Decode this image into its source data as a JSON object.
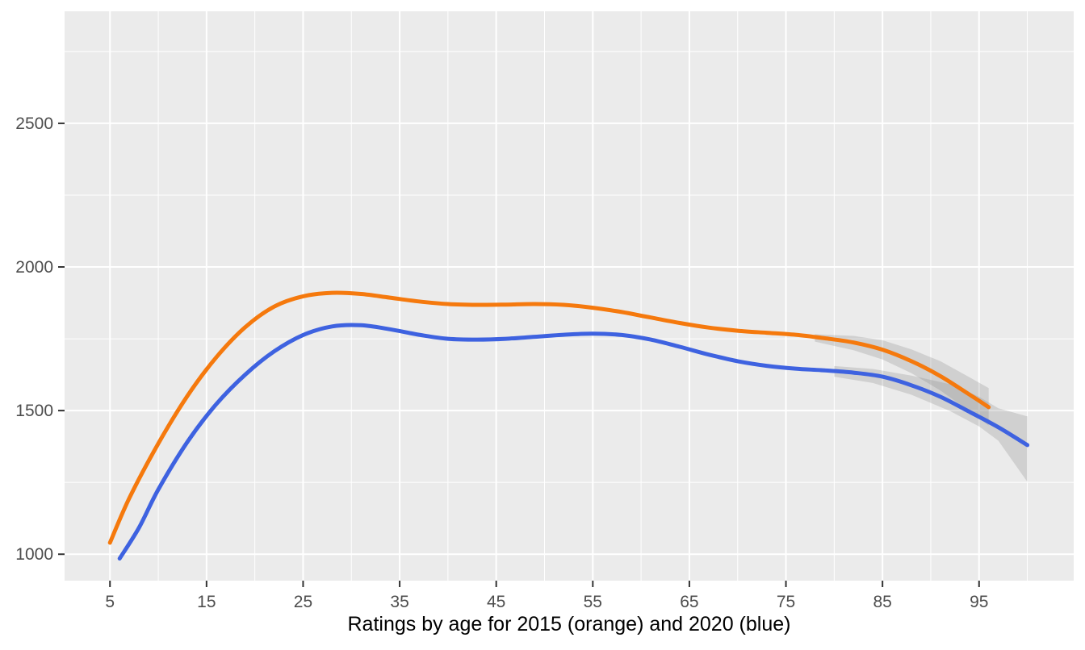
{
  "page": {
    "background": "#FFFFFF"
  },
  "chart_data": {
    "type": "line",
    "title": "",
    "xlabel": "Ratings by age for 2015 (orange) and 2020 (blue)",
    "ylabel": "",
    "style": "ggplot2",
    "panel_bg": "#EBEBEB",
    "grid_color": "#FFFFFF",
    "grid": true,
    "legend": "none",
    "axis_text_color": "#4D4D4D",
    "tick_mark_color": "#333333",
    "xlim": [
      0.3,
      104.8
    ],
    "ylim": [
      908,
      2890
    ],
    "x_ticks": [
      5,
      15,
      25,
      35,
      45,
      55,
      65,
      75,
      85,
      95
    ],
    "x_minor_ticks": [
      10,
      20,
      30,
      40,
      50,
      60,
      70,
      80,
      90,
      100
    ],
    "y_ticks": [
      1000,
      1500,
      2000,
      2500
    ],
    "y_minor_ticks": [
      1250,
      1750,
      2250,
      2750
    ],
    "series": [
      {
        "name": "2015",
        "color": "#F5790D",
        "x": [
          5,
          7,
          10,
          13,
          16,
          19,
          22,
          25,
          28,
          31,
          34,
          37,
          40,
          43,
          46,
          49,
          52,
          55,
          58,
          61,
          64,
          67,
          70,
          73,
          76,
          79,
          82,
          85,
          88,
          91,
          94,
          96
        ],
        "y": [
          1040,
          1195,
          1385,
          1550,
          1685,
          1790,
          1862,
          1898,
          1910,
          1906,
          1893,
          1880,
          1871,
          1868,
          1869,
          1871,
          1868,
          1858,
          1843,
          1824,
          1805,
          1789,
          1778,
          1771,
          1764,
          1752,
          1737,
          1712,
          1672,
          1620,
          1556,
          1512
        ]
      },
      {
        "name": "2020",
        "color": "#3E62E0",
        "x": [
          6,
          8,
          10,
          13,
          16,
          19,
          22,
          25,
          28,
          31,
          34,
          37,
          40,
          43,
          46,
          49,
          52,
          55,
          58,
          61,
          64,
          67,
          70,
          73,
          76,
          79,
          82,
          85,
          88,
          91,
          94,
          97,
          100
        ],
        "y": [
          985,
          1092,
          1225,
          1390,
          1522,
          1625,
          1706,
          1763,
          1793,
          1797,
          1783,
          1764,
          1750,
          1747,
          1750,
          1757,
          1764,
          1768,
          1763,
          1747,
          1722,
          1695,
          1672,
          1656,
          1646,
          1640,
          1632,
          1618,
          1588,
          1548,
          1496,
          1442,
          1380
        ]
      }
    ],
    "ribbons": [
      {
        "series": "2015",
        "color": "#7F7F7F",
        "opacity": 0.25,
        "x": [
          78,
          82,
          85,
          88,
          91,
          94,
          96
        ],
        "lower": [
          1740,
          1710,
          1678,
          1630,
          1570,
          1498,
          1448
        ],
        "upper": [
          1766,
          1760,
          1745,
          1713,
          1672,
          1616,
          1578
        ]
      },
      {
        "series": "2020",
        "color": "#7F7F7F",
        "opacity": 0.25,
        "x": [
          80,
          84,
          88,
          92,
          95,
          97,
          100
        ],
        "lower": [
          1618,
          1596,
          1555,
          1498,
          1445,
          1395,
          1252
        ],
        "upper": [
          1655,
          1645,
          1622,
          1592,
          1548,
          1508,
          1480
        ]
      }
    ]
  }
}
